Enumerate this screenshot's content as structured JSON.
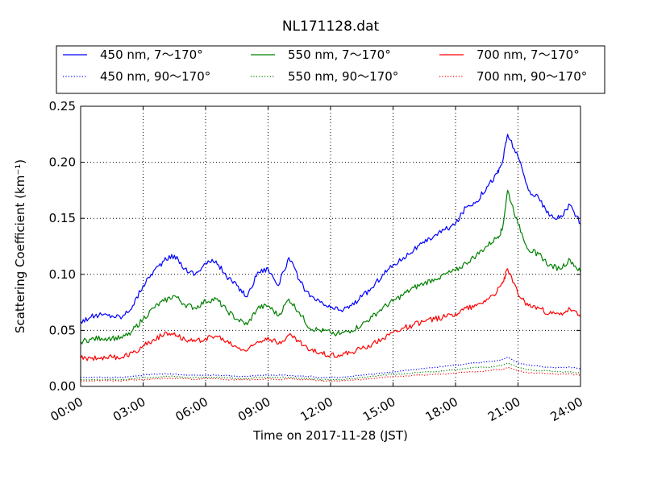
{
  "chart_data": {
    "type": "line",
    "title": "NL171128.dat",
    "xlabel": "Time on 2017-11-28 (JST)",
    "ylabel": "Scattering Coefficient (km⁻¹)",
    "xlim": [
      "00:00",
      "24:00"
    ],
    "ylim": [
      0,
      0.25
    ],
    "x_ticks": [
      "00:00",
      "03:00",
      "06:00",
      "09:00",
      "12:00",
      "15:00",
      "18:00",
      "21:00",
      "24:00"
    ],
    "y_ticks": [
      "0.00",
      "0.05",
      "0.10",
      "0.15",
      "0.20",
      "0.25"
    ],
    "grid": true,
    "legend_position": "top",
    "x": [
      "00:00",
      "00:30",
      "01:00",
      "01:30",
      "02:00",
      "02:30",
      "03:00",
      "03:30",
      "04:00",
      "04:30",
      "05:00",
      "05:30",
      "06:00",
      "06:30",
      "07:00",
      "07:30",
      "08:00",
      "08:30",
      "09:00",
      "09:30",
      "10:00",
      "10:30",
      "11:00",
      "11:30",
      "12:00",
      "12:30",
      "13:00",
      "13:30",
      "14:00",
      "14:30",
      "15:00",
      "15:30",
      "16:00",
      "16:30",
      "17:00",
      "17:30",
      "18:00",
      "18:30",
      "19:00",
      "19:30",
      "20:00",
      "20:15",
      "20:30",
      "21:00",
      "21:30",
      "22:00",
      "22:30",
      "23:00",
      "23:30",
      "24:00"
    ],
    "series": [
      {
        "name": "450 nm, 7～170°",
        "color": "#0000ff",
        "style": "solid",
        "values": [
          0.058,
          0.062,
          0.064,
          0.063,
          0.062,
          0.072,
          0.09,
          0.103,
          0.112,
          0.117,
          0.105,
          0.1,
          0.11,
          0.112,
          0.098,
          0.09,
          0.08,
          0.102,
          0.105,
          0.09,
          0.115,
          0.095,
          0.08,
          0.075,
          0.07,
          0.068,
          0.072,
          0.08,
          0.088,
          0.1,
          0.108,
          0.115,
          0.122,
          0.128,
          0.135,
          0.14,
          0.145,
          0.16,
          0.165,
          0.178,
          0.19,
          0.2,
          0.225,
          0.205,
          0.175,
          0.168,
          0.152,
          0.15,
          0.162,
          0.145
        ]
      },
      {
        "name": "450 nm, 90～170°",
        "color": "#0000ff",
        "style": "dotted",
        "values": [
          0.008,
          0.008,
          0.008,
          0.008,
          0.008,
          0.009,
          0.01,
          0.011,
          0.011,
          0.011,
          0.01,
          0.01,
          0.01,
          0.01,
          0.01,
          0.009,
          0.009,
          0.01,
          0.01,
          0.01,
          0.01,
          0.009,
          0.009,
          0.008,
          0.008,
          0.008,
          0.009,
          0.01,
          0.011,
          0.012,
          0.013,
          0.014,
          0.015,
          0.016,
          0.017,
          0.018,
          0.019,
          0.02,
          0.021,
          0.022,
          0.023,
          0.024,
          0.026,
          0.021,
          0.019,
          0.018,
          0.017,
          0.017,
          0.017,
          0.016
        ]
      },
      {
        "name": "550 nm, 7～170°",
        "color": "#008000",
        "style": "solid",
        "values": [
          0.04,
          0.042,
          0.043,
          0.043,
          0.043,
          0.05,
          0.06,
          0.07,
          0.076,
          0.081,
          0.073,
          0.07,
          0.076,
          0.078,
          0.068,
          0.06,
          0.055,
          0.07,
          0.072,
          0.063,
          0.078,
          0.066,
          0.052,
          0.05,
          0.048,
          0.047,
          0.05,
          0.055,
          0.062,
          0.07,
          0.076,
          0.082,
          0.088,
          0.092,
          0.096,
          0.1,
          0.103,
          0.11,
          0.117,
          0.125,
          0.133,
          0.14,
          0.175,
          0.145,
          0.122,
          0.118,
          0.108,
          0.105,
          0.113,
          0.102
        ]
      },
      {
        "name": "550 nm, 90～170°",
        "color": "#008000",
        "style": "dotted",
        "values": [
          0.006,
          0.006,
          0.006,
          0.006,
          0.006,
          0.007,
          0.008,
          0.008,
          0.009,
          0.009,
          0.008,
          0.008,
          0.008,
          0.008,
          0.008,
          0.007,
          0.007,
          0.008,
          0.008,
          0.008,
          0.008,
          0.007,
          0.007,
          0.006,
          0.006,
          0.006,
          0.007,
          0.008,
          0.009,
          0.01,
          0.011,
          0.011,
          0.012,
          0.013,
          0.013,
          0.014,
          0.015,
          0.016,
          0.017,
          0.017,
          0.018,
          0.019,
          0.021,
          0.017,
          0.015,
          0.014,
          0.014,
          0.013,
          0.013,
          0.012
        ]
      },
      {
        "name": "700 nm, 7～170°",
        "color": "#ff0000",
        "style": "solid",
        "values": [
          0.025,
          0.025,
          0.026,
          0.026,
          0.026,
          0.03,
          0.036,
          0.042,
          0.046,
          0.048,
          0.042,
          0.04,
          0.043,
          0.045,
          0.04,
          0.035,
          0.032,
          0.04,
          0.044,
          0.038,
          0.046,
          0.04,
          0.032,
          0.03,
          0.028,
          0.028,
          0.03,
          0.034,
          0.038,
          0.043,
          0.048,
          0.052,
          0.055,
          0.058,
          0.06,
          0.062,
          0.065,
          0.07,
          0.072,
          0.078,
          0.085,
          0.092,
          0.105,
          0.082,
          0.072,
          0.07,
          0.065,
          0.064,
          0.069,
          0.062
        ]
      },
      {
        "name": "700 nm, 90～170°",
        "color": "#ff0000",
        "style": "dotted",
        "values": [
          0.005,
          0.005,
          0.005,
          0.005,
          0.005,
          0.006,
          0.006,
          0.007,
          0.007,
          0.007,
          0.007,
          0.006,
          0.007,
          0.007,
          0.006,
          0.006,
          0.006,
          0.006,
          0.007,
          0.006,
          0.007,
          0.006,
          0.006,
          0.005,
          0.005,
          0.005,
          0.006,
          0.006,
          0.007,
          0.008,
          0.009,
          0.009,
          0.01,
          0.01,
          0.011,
          0.011,
          0.012,
          0.013,
          0.013,
          0.014,
          0.015,
          0.015,
          0.017,
          0.014,
          0.012,
          0.012,
          0.011,
          0.011,
          0.011,
          0.01
        ]
      }
    ]
  }
}
